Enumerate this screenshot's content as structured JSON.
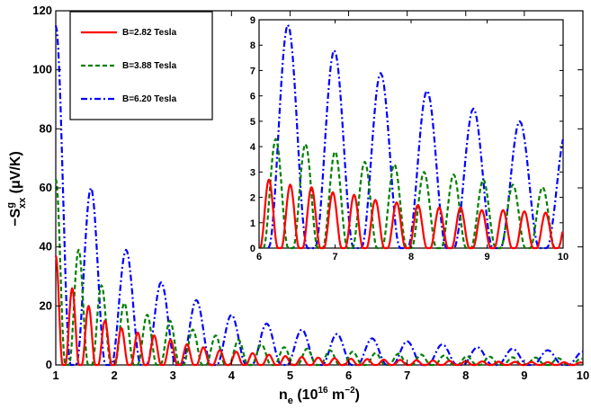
{
  "chart_data": {
    "type": "line",
    "xlabel": "n_e (10^16 m^-2)",
    "ylabel": "-S_xx^g (μV/K)",
    "xlim": [
      1,
      10
    ],
    "ylim": [
      0,
      120
    ],
    "xticks": [
      1,
      2,
      3,
      4,
      5,
      6,
      7,
      8,
      9,
      10
    ],
    "yticks": [
      0,
      20,
      40,
      60,
      80,
      100,
      120
    ],
    "legend_position": "top-left",
    "grid": false,
    "series": [
      {
        "name": "B=2.82 Tesla",
        "color": "#ff0000",
        "dash": "solid",
        "peaks_main": [
          [
            1.0,
            37
          ],
          [
            1.28,
            26
          ],
          [
            1.56,
            20
          ],
          [
            1.84,
            15
          ],
          [
            2.12,
            12.5
          ],
          [
            2.4,
            11
          ],
          [
            2.68,
            10
          ],
          [
            2.96,
            8.5
          ],
          [
            3.24,
            7
          ],
          [
            3.52,
            6
          ],
          [
            3.8,
            5
          ],
          [
            4.08,
            4.5
          ],
          [
            4.36,
            4
          ],
          [
            4.64,
            3.5
          ],
          [
            4.92,
            3
          ],
          [
            5.2,
            2.7
          ],
          [
            5.48,
            2.5
          ],
          [
            5.76,
            2.3
          ],
          [
            6.04,
            2.1
          ],
          [
            6.32,
            2
          ],
          [
            6.6,
            1.8
          ],
          [
            6.88,
            1.7
          ],
          [
            7.16,
            1.6
          ],
          [
            7.44,
            1.5
          ],
          [
            7.72,
            1.4
          ],
          [
            8.0,
            1.3
          ],
          [
            8.28,
            1.2
          ],
          [
            8.56,
            1.1
          ],
          [
            8.84,
            1.05
          ],
          [
            9.12,
            1.0
          ],
          [
            9.4,
            0.95
          ],
          [
            9.68,
            0.9
          ],
          [
            9.96,
            0.85
          ]
        ],
        "peaks_inset": [
          [
            6.13,
            2.7
          ],
          [
            6.41,
            2.5
          ],
          [
            6.69,
            2.4
          ],
          [
            6.97,
            2.2
          ],
          [
            7.25,
            2.1
          ],
          [
            7.53,
            1.9
          ],
          [
            7.81,
            1.8
          ],
          [
            8.09,
            1.7
          ],
          [
            8.37,
            1.6
          ],
          [
            8.65,
            1.6
          ],
          [
            8.93,
            1.5
          ],
          [
            9.21,
            1.5
          ],
          [
            9.49,
            1.45
          ],
          [
            9.77,
            1.4
          ],
          [
            10.05,
            1.3
          ]
        ]
      },
      {
        "name": "B=3.88 Tesla",
        "color": "#008000",
        "dash": "dashed",
        "peaks_main": [
          [
            1.0,
            63
          ],
          [
            1.39,
            39
          ],
          [
            1.78,
            27
          ],
          [
            2.17,
            21
          ],
          [
            2.56,
            17
          ],
          [
            2.95,
            15
          ],
          [
            3.34,
            12
          ],
          [
            3.73,
            10
          ],
          [
            4.12,
            8.5
          ],
          [
            4.51,
            7
          ],
          [
            4.9,
            6
          ],
          [
            5.29,
            5.5
          ],
          [
            5.68,
            5
          ],
          [
            6.07,
            4.5
          ],
          [
            6.46,
            4
          ],
          [
            6.85,
            3.8
          ],
          [
            7.24,
            3.5
          ],
          [
            7.63,
            3.2
          ],
          [
            8.02,
            3.0
          ],
          [
            8.41,
            2.8
          ],
          [
            8.8,
            2.6
          ],
          [
            9.19,
            2.5
          ],
          [
            9.58,
            2.3
          ],
          [
            9.97,
            2.2
          ]
        ],
        "peaks_inset": [
          [
            6.22,
            4.3
          ],
          [
            6.61,
            4.1
          ],
          [
            7.0,
            3.8
          ],
          [
            7.39,
            3.4
          ],
          [
            7.78,
            3.3
          ],
          [
            8.17,
            3.0
          ],
          [
            8.56,
            2.9
          ],
          [
            8.95,
            2.7
          ],
          [
            9.34,
            2.5
          ],
          [
            9.73,
            2.4
          ]
        ]
      },
      {
        "name": "B=6.20 Tesla",
        "color": "#0000ff",
        "dash": "dashdot",
        "peaks_main": [
          [
            1.0,
            115
          ],
          [
            1.6,
            60
          ],
          [
            2.2,
            39
          ],
          [
            2.8,
            28
          ],
          [
            3.4,
            22
          ],
          [
            4.0,
            17
          ],
          [
            4.6,
            14
          ],
          [
            5.2,
            12
          ],
          [
            5.8,
            10.5
          ],
          [
            6.4,
            9
          ],
          [
            7.0,
            8
          ],
          [
            7.6,
            7
          ],
          [
            8.2,
            6
          ],
          [
            8.8,
            5.5
          ],
          [
            9.4,
            5
          ],
          [
            10.0,
            4.5
          ]
        ],
        "peaks_inset": [
          [
            6.38,
            8.8
          ],
          [
            6.99,
            7.8
          ],
          [
            7.6,
            6.9
          ],
          [
            8.21,
            6.2
          ],
          [
            8.82,
            5.5
          ],
          [
            9.43,
            5.0
          ],
          [
            10.04,
            4.6
          ]
        ]
      }
    ],
    "inset": {
      "xlim": [
        6,
        10
      ],
      "ylim": [
        0,
        9
      ],
      "xticks": [
        6,
        7,
        8,
        9,
        10
      ],
      "yticks": [
        0,
        1,
        2,
        3,
        4,
        5,
        6,
        7,
        8,
        9
      ]
    }
  }
}
